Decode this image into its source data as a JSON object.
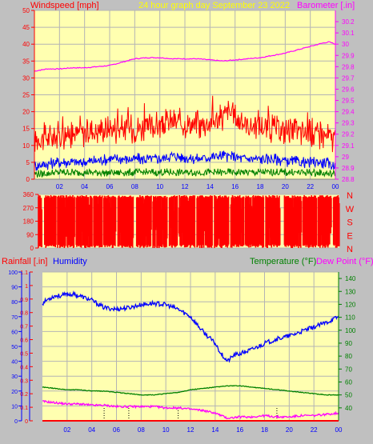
{
  "colors": {
    "background": "#c0c0c0",
    "plot_bg": "#ffffb0",
    "grid": "#b4b4b4",
    "wind_axis": "#ff0000",
    "baro_axis": "#ff00ff",
    "title": "#ffff00",
    "rain_axis": "#ff0000",
    "hum_axis": "#0000ff",
    "temp_axis": "#008000",
    "dew_axis": "#ff00ff",
    "bottom_axis": "#0000ff"
  },
  "header": {
    "wind_label": "Windspeed [mph]",
    "title": "24 hour graph day   September 23 2022",
    "baro_label": "Barometer [.in]"
  },
  "direction_letters": [
    "N",
    "W",
    "S",
    "E",
    "N"
  ],
  "bottom_header": {
    "rain_label": "Rainfall [.in]",
    "humidity_label": "Humidity",
    "temp_label": "Temperature (°F)",
    "dew_label": "Dew Point (°F)"
  },
  "chart_data": [
    {
      "type": "line",
      "id": "wind-baro",
      "x_ticks": [
        "02",
        "04",
        "06",
        "08",
        "10",
        "12",
        "14",
        "16",
        "18",
        "20",
        "22",
        "00"
      ],
      "xlim": [
        0,
        24
      ],
      "wind_ylim": [
        0,
        50
      ],
      "wind_ticks": [
        "0",
        "5",
        "10",
        "15",
        "20",
        "25",
        "30",
        "35",
        "40",
        "45",
        "50"
      ],
      "baro_ylim": [
        28.8,
        30.3
      ],
      "baro_ticks": [
        "28.8",
        "28.9",
        "29",
        "29.1",
        "29.2",
        "29.3",
        "29.4",
        "29.5",
        "29.6",
        "29.7",
        "29.8",
        "29.9",
        "30",
        "30.1",
        "30.2"
      ],
      "series": [
        {
          "key": "gust",
          "color": "#ff0000",
          "x": [
            0,
            2,
            4,
            6,
            8,
            10,
            11,
            13,
            15,
            15.4,
            17,
            19,
            21,
            23,
            24
          ],
          "y": [
            12,
            13,
            14,
            15,
            15,
            16,
            17,
            16,
            18,
            20,
            16,
            15,
            14,
            13,
            12
          ]
        },
        {
          "key": "speed",
          "color": "#0000ff",
          "x": [
            0,
            2,
            4,
            6,
            8,
            10,
            11,
            13,
            15,
            17,
            19,
            21,
            23,
            24
          ],
          "y": [
            4,
            5,
            5,
            6,
            6,
            6,
            7,
            6,
            7,
            6,
            6,
            5,
            5,
            4
          ]
        },
        {
          "key": "low",
          "color": "#008000",
          "x": [
            0,
            2,
            4,
            6,
            8,
            10,
            12,
            14,
            16,
            18,
            20,
            22,
            24
          ],
          "y": [
            1.5,
            2,
            2,
            2,
            2,
            2,
            2,
            2,
            2,
            2,
            2,
            2,
            1.5
          ]
        },
        {
          "key": "barometer",
          "color": "#ff00ff",
          "x": [
            0,
            1,
            2,
            3,
            4,
            5,
            6,
            7,
            8,
            9,
            10,
            11,
            12,
            13,
            14,
            15,
            16,
            17,
            18,
            19,
            20,
            21,
            22,
            23,
            23.5,
            24
          ],
          "y": [
            29.76,
            29.78,
            29.78,
            29.79,
            29.79,
            29.8,
            29.81,
            29.84,
            29.87,
            29.88,
            29.88,
            29.87,
            29.87,
            29.87,
            29.86,
            29.85,
            29.86,
            29.87,
            29.88,
            29.9,
            29.92,
            29.95,
            29.98,
            30.01,
            30.02,
            30.0
          ]
        }
      ]
    },
    {
      "type": "bar",
      "id": "wind-direction",
      "xlim": [
        0,
        24
      ],
      "ylim": [
        0,
        360
      ],
      "y_ticks": [
        "0",
        "90",
        "180",
        "270",
        "360"
      ],
      "series": [
        {
          "key": "direction",
          "color": "#ff0000",
          "gaps": [
            [
              0.3,
              0.45
            ],
            [
              1.4,
              1.5
            ],
            [
              2.9,
              3.0
            ],
            [
              4.3,
              4.4
            ],
            [
              5.1,
              5.2
            ],
            [
              6.2,
              6.3
            ],
            [
              7.6,
              7.8
            ],
            [
              9.0,
              9.1
            ],
            [
              10.3,
              10.4
            ],
            [
              11.1,
              11.2
            ],
            [
              12.5,
              12.6
            ],
            [
              13.9,
              14.0
            ],
            [
              15.2,
              15.3
            ],
            [
              16.4,
              16.5
            ],
            [
              18.0,
              18.1
            ],
            [
              19.3,
              19.6
            ],
            [
              21.0,
              21.1
            ],
            [
              22.2,
              22.3
            ],
            [
              23.4,
              23.5
            ]
          ]
        }
      ]
    },
    {
      "type": "line",
      "id": "temp-hum-rain",
      "x_ticks": [
        "02",
        "04",
        "06",
        "08",
        "10",
        "12",
        "14",
        "16",
        "18",
        "20",
        "22",
        "00"
      ],
      "xlim": [
        0,
        24
      ],
      "rain_ylim": [
        0,
        1.1
      ],
      "rain_ticks": [
        "0",
        "0.1",
        "0.2",
        "0.3",
        "0.4",
        "0.5",
        "0.6",
        "0.7",
        "0.8",
        "0.9",
        "1",
        "1.1"
      ],
      "hum_ylim": [
        0,
        100
      ],
      "hum_ticks": [
        "0",
        "10",
        "20",
        "30",
        "40",
        "50",
        "60",
        "70",
        "80",
        "90",
        "100"
      ],
      "temp_ylim": [
        30,
        145
      ],
      "temp_ticks": [
        "40",
        "50",
        "60",
        "70",
        "80",
        "90",
        "100",
        "110",
        "120",
        "130",
        "140"
      ],
      "rain_markers": [
        5.0,
        7.0,
        11.0,
        19.0
      ],
      "series": [
        {
          "key": "humidity",
          "color": "#0000ff",
          "axis": "hum",
          "x": [
            0,
            0.5,
            1,
            1.5,
            2,
            2.5,
            3,
            4,
            5,
            6,
            7,
            8,
            9,
            10,
            11,
            12,
            13,
            14,
            14.5,
            15,
            15.5,
            16,
            17,
            18,
            19,
            20,
            21,
            22,
            23,
            24
          ],
          "y": [
            79,
            82,
            84,
            84,
            85,
            85,
            84,
            81,
            76,
            75,
            76,
            78,
            79,
            78,
            75,
            70,
            60,
            52,
            45,
            40,
            44,
            45,
            48,
            52,
            55,
            57,
            60,
            63,
            66,
            70
          ]
        },
        {
          "key": "temperature",
          "color": "#008000",
          "axis": "temp",
          "x": [
            0,
            1,
            2,
            3,
            4,
            5,
            6,
            7,
            8,
            9,
            10,
            11,
            12,
            13,
            14,
            15,
            16,
            17,
            18,
            19,
            20,
            21,
            22,
            23,
            24
          ],
          "y": [
            56,
            55,
            54,
            54,
            53,
            53,
            52,
            51,
            50,
            50,
            51,
            52,
            54,
            55,
            56,
            57,
            57,
            56,
            55,
            54,
            53,
            52,
            51,
            50,
            50
          ]
        },
        {
          "key": "dew_point",
          "color": "#ff00ff",
          "axis": "temp",
          "x": [
            0,
            1,
            2,
            3,
            4,
            5,
            6,
            7,
            8,
            9,
            10,
            11,
            12,
            13,
            14,
            14.5,
            15,
            16,
            17,
            18,
            19,
            20,
            21,
            22,
            23,
            24
          ],
          "y": [
            45,
            44,
            43,
            43,
            42,
            42,
            41,
            41,
            41,
            41,
            40,
            40,
            39,
            38,
            36,
            34,
            32,
            33,
            33,
            34,
            33,
            33,
            34,
            34,
            35,
            36
          ]
        }
      ]
    }
  ]
}
